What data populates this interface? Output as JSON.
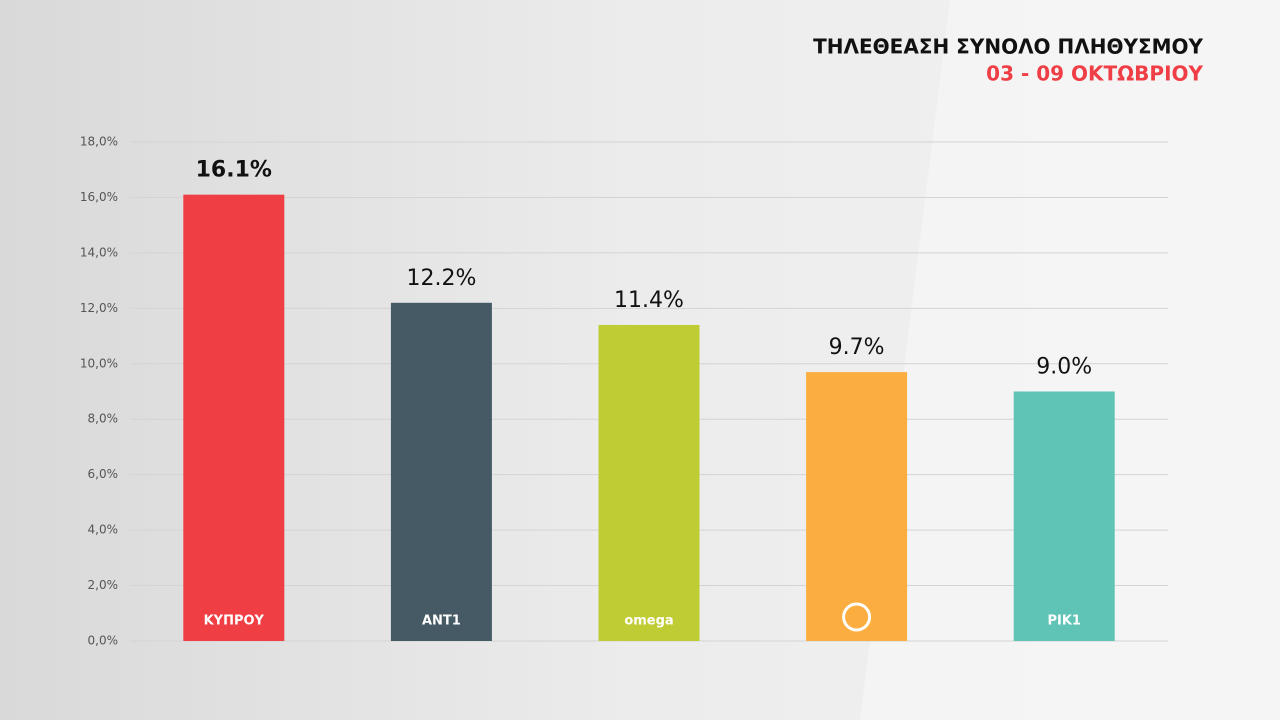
{
  "chart_data": {
    "type": "bar",
    "title": "ΤΗΛΕΘΕΑΣΗ ΣΥΝΟΛΟ ΠΛΗΘΥΣΜΟΥ",
    "subtitle": "03 - 09 ΟΚΤΩΒΡΙΟΥ",
    "categories": [
      "ΚΥΠΡΟΥ",
      "ANT1",
      "omega",
      null,
      "ΡΙΚ1"
    ],
    "values": [
      16.1,
      12.2,
      11.4,
      9.7,
      9.0
    ],
    "value_labels": [
      "16.1%",
      "12.2%",
      "11.4%",
      "9.7%",
      "9.0%"
    ],
    "colors": [
      "#f03e45",
      "#455a64",
      "#c0cc33",
      "#fbad3f",
      "#5fc4b6"
    ],
    "ylim": [
      0,
      18
    ],
    "yticks": [
      {
        "value": 0,
        "label": "0,0%"
      },
      {
        "value": 2,
        "label": "2,0%"
      },
      {
        "value": 4,
        "label": "4,0%"
      },
      {
        "value": 6,
        "label": "6,0%"
      },
      {
        "value": 8,
        "label": "8,0%"
      },
      {
        "value": 10,
        "label": "10,0%"
      },
      {
        "value": 12,
        "label": "12,0%"
      },
      {
        "value": 14,
        "label": "14,0%"
      },
      {
        "value": 16,
        "label": "16,0%"
      },
      {
        "value": 18,
        "label": "18,0%"
      }
    ],
    "grid": true
  }
}
